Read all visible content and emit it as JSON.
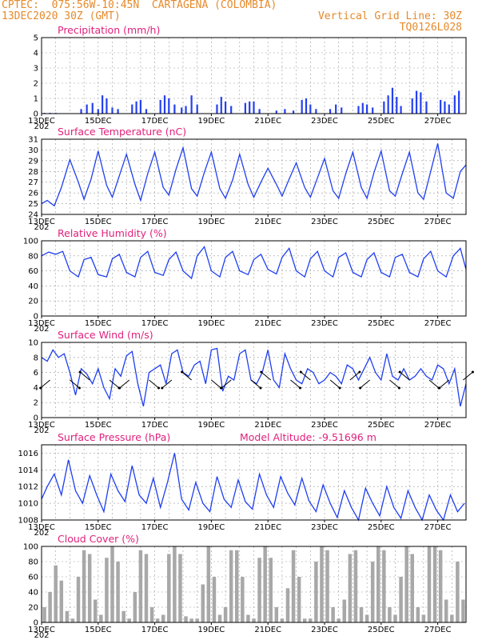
{
  "header": {
    "line1_left": "CPTEC:  075:56W-10:45N  CARTAGENA (COLOMBIA)",
    "line2_left": "13DEC2020 30Z (GMT)",
    "line2_right": "Vertical Grid Line: 30Z",
    "line3_right": "TQ0126L028"
  },
  "colors": {
    "header": "#e58a2c",
    "title": "#e0217c",
    "line": "#1f3ff0",
    "bar": "#2440f0",
    "cloud": "#a8a8a8",
    "grid": "#9a9a9a"
  },
  "chart_data": [
    {
      "type": "bar",
      "title": "Precipitation (mm/h)",
      "x_ticks": [
        "13DEC",
        "15DEC",
        "17DEC",
        "19DEC",
        "21DEC",
        "23DEC",
        "25DEC",
        "27DEC"
      ],
      "x_extra_label": "202",
      "ylim": [
        0,
        5
      ],
      "y_ticks": [
        "0",
        "1",
        "2",
        "3",
        "4",
        "5"
      ],
      "grid": "dashed",
      "x_days": [
        0.1,
        0.3,
        0.5,
        1.4,
        1.6,
        1.8,
        2.0,
        2.15,
        2.3,
        2.5,
        2.7,
        3.2,
        3.35,
        3.5,
        3.7,
        4.2,
        4.35,
        4.5,
        4.7,
        4.95,
        5.1,
        5.3,
        5.5,
        6.2,
        6.35,
        6.5,
        6.7,
        7.2,
        7.35,
        7.5,
        7.7,
        8.3,
        8.6,
        8.9,
        9.2,
        9.35,
        9.5,
        9.7,
        10.2,
        10.4,
        10.6,
        11.2,
        11.35,
        11.5,
        11.7,
        12.1,
        12.25,
        12.4,
        12.55,
        12.7,
        13.1,
        13.25,
        13.4,
        13.6,
        14.1,
        14.25,
        14.4,
        14.6,
        14.75
      ],
      "values": [
        0.05,
        0.05,
        0.05,
        0.3,
        0.6,
        0.7,
        0.3,
        1.2,
        1.0,
        0.4,
        0.3,
        0.6,
        0.8,
        0.9,
        0.3,
        0.9,
        1.2,
        1.0,
        0.6,
        0.4,
        0.5,
        1.2,
        0.6,
        0.6,
        1.1,
        0.8,
        0.5,
        0.7,
        0.8,
        0.8,
        0.3,
        0.2,
        0.3,
        0.2,
        0.9,
        1.0,
        0.6,
        0.3,
        0.3,
        0.6,
        0.4,
        0.5,
        0.7,
        0.6,
        0.4,
        0.8,
        1.2,
        1.7,
        1.1,
        0.5,
        1.0,
        1.5,
        1.4,
        0.8,
        0.9,
        0.8,
        0.6,
        1.2,
        1.5
      ]
    },
    {
      "type": "line",
      "title": "Surface Temperature (nC)",
      "x_ticks": [
        "13DEC",
        "15DEC",
        "17DEC",
        "19DEC",
        "21DEC",
        "23DEC",
        "25DEC",
        "27DEC"
      ],
      "x_extra_label": "202",
      "ylim": [
        24,
        31
      ],
      "y_ticks": [
        "24",
        "25",
        "26",
        "27",
        "28",
        "29",
        "30",
        "31"
      ],
      "grid": "dashed",
      "x_days": [
        0,
        0.2,
        0.45,
        0.7,
        1.0,
        1.3,
        1.5,
        1.75,
        2.0,
        2.3,
        2.5,
        2.75,
        3.0,
        3.3,
        3.5,
        3.75,
        4.0,
        4.3,
        4.5,
        4.75,
        5.0,
        5.3,
        5.5,
        5.75,
        6.0,
        6.3,
        6.5,
        6.75,
        7.0,
        7.3,
        7.5,
        7.75,
        8.0,
        8.3,
        8.5,
        8.75,
        9.0,
        9.3,
        9.5,
        9.75,
        10.0,
        10.3,
        10.5,
        10.75,
        11.0,
        11.3,
        11.5,
        11.75,
        12.0,
        12.3,
        12.5,
        12.75,
        13.0,
        13.3,
        13.5,
        13.75,
        14.0,
        14.3,
        14.55,
        14.8,
        15.0
      ],
      "values": [
        25.0,
        25.3,
        24.8,
        26.5,
        29.1,
        27.0,
        25.4,
        27.3,
        29.9,
        26.7,
        25.6,
        27.6,
        29.6,
        26.8,
        25.3,
        27.8,
        29.8,
        26.5,
        25.8,
        28.2,
        30.2,
        26.4,
        25.7,
        27.9,
        29.8,
        26.4,
        25.5,
        27.2,
        29.6,
        26.8,
        25.6,
        27.0,
        28.3,
        26.8,
        25.7,
        27.3,
        28.8,
        26.5,
        25.6,
        27.4,
        29.2,
        26.2,
        25.5,
        27.8,
        29.8,
        26.5,
        25.5,
        27.9,
        29.9,
        26.2,
        25.7,
        27.8,
        29.8,
        26.0,
        25.4,
        28.0,
        30.6,
        26.0,
        25.5,
        28.0,
        28.6
      ]
    },
    {
      "type": "line",
      "title": "Relative Humidity (%)",
      "x_ticks": [
        "13DEC",
        "15DEC",
        "17DEC",
        "19DEC",
        "21DEC",
        "23DEC",
        "25DEC",
        "27DEC"
      ],
      "x_extra_label": "202",
      "ylim": [
        0,
        100
      ],
      "y_ticks": [
        "0",
        "20",
        "40",
        "60",
        "80",
        "100"
      ],
      "grid": "dashed",
      "x_days": [
        0,
        0.25,
        0.5,
        0.75,
        1.0,
        1.3,
        1.5,
        1.75,
        2.0,
        2.3,
        2.5,
        2.75,
        3.0,
        3.3,
        3.5,
        3.75,
        4.0,
        4.3,
        4.5,
        4.75,
        5.0,
        5.3,
        5.5,
        5.75,
        6.0,
        6.3,
        6.5,
        6.75,
        7.0,
        7.3,
        7.5,
        7.75,
        8.0,
        8.3,
        8.5,
        8.75,
        9.0,
        9.3,
        9.5,
        9.75,
        10.0,
        10.3,
        10.5,
        10.75,
        11.0,
        11.3,
        11.5,
        11.75,
        12.0,
        12.3,
        12.5,
        12.75,
        13.0,
        13.3,
        13.5,
        13.75,
        14.0,
        14.3,
        14.55,
        14.8,
        15.0
      ],
      "values": [
        80,
        85,
        82,
        86,
        60,
        52,
        75,
        78,
        55,
        52,
        76,
        82,
        58,
        52,
        78,
        86,
        58,
        54,
        75,
        85,
        60,
        50,
        80,
        92,
        60,
        52,
        78,
        86,
        60,
        55,
        75,
        82,
        62,
        56,
        78,
        90,
        60,
        52,
        76,
        86,
        60,
        52,
        78,
        84,
        58,
        52,
        75,
        84,
        58,
        52,
        78,
        82,
        58,
        52,
        76,
        86,
        60,
        52,
        80,
        90,
        62
      ]
    },
    {
      "type": "line",
      "title": "Surface Wind (m/s)",
      "x_ticks": [
        "13DEC",
        "15DEC",
        "17DEC",
        "19DEC",
        "21DEC",
        "23DEC",
        "25DEC",
        "27DEC"
      ],
      "x_extra_label": "202",
      "ylim": [
        0,
        10
      ],
      "y_ticks": [
        "0",
        "2",
        "4",
        "6",
        "8",
        "10"
      ],
      "grid": "dashed",
      "x_days": [
        0,
        0.2,
        0.4,
        0.6,
        0.8,
        1.0,
        1.2,
        1.4,
        1.6,
        1.8,
        2.0,
        2.2,
        2.4,
        2.6,
        2.8,
        3.0,
        3.2,
        3.4,
        3.6,
        3.8,
        4.0,
        4.2,
        4.4,
        4.6,
        4.8,
        5.0,
        5.2,
        5.4,
        5.6,
        5.8,
        6.0,
        6.2,
        6.4,
        6.6,
        6.8,
        7.0,
        7.2,
        7.4,
        7.6,
        7.8,
        8.0,
        8.2,
        8.4,
        8.6,
        8.8,
        9.0,
        9.2,
        9.4,
        9.6,
        9.8,
        10.0,
        10.2,
        10.4,
        10.6,
        10.8,
        11.0,
        11.2,
        11.4,
        11.6,
        11.8,
        12.0,
        12.2,
        12.4,
        12.6,
        12.8,
        13.0,
        13.2,
        13.4,
        13.6,
        13.8,
        14.0,
        14.2,
        14.4,
        14.6,
        14.8,
        15.0
      ],
      "values": [
        8.0,
        7.5,
        9.0,
        8.0,
        8.5,
        6.0,
        3.0,
        6.5,
        5.8,
        4.5,
        6.5,
        4.0,
        2.5,
        6.5,
        5.5,
        8.2,
        8.8,
        4.5,
        1.5,
        6.0,
        6.5,
        7.0,
        4.5,
        8.5,
        9.0,
        6.0,
        5.5,
        7.0,
        7.5,
        4.5,
        9.0,
        9.2,
        3.5,
        5.5,
        5.0,
        8.5,
        9.0,
        5.0,
        4.5,
        6.0,
        9.0,
        5.0,
        4.0,
        8.5,
        6.5,
        5.0,
        4.5,
        6.5,
        6.0,
        4.5,
        5.0,
        6.0,
        5.5,
        4.5,
        7.0,
        6.5,
        5.0,
        6.5,
        8.0,
        6.0,
        5.0,
        8.5,
        5.5,
        5.0,
        6.5,
        5.0,
        5.5,
        6.5,
        5.5,
        5.0,
        7.0,
        6.5,
        4.5,
        6.5,
        1.5,
        4.5
      ],
      "barbs_x_days": [
        0.3,
        1.0,
        1.7,
        2.4,
        3.1,
        3.8,
        4.6,
        5.3,
        6.0,
        6.7,
        7.4,
        8.1,
        8.8,
        9.5,
        10.2,
        10.9,
        11.6,
        12.3,
        13.0,
        13.7,
        14.4,
        14.9
      ],
      "barbs_u": [
        -1,
        1,
        -1,
        1,
        -1,
        1,
        -1,
        -1,
        1,
        -1,
        1,
        -1,
        1,
        -1,
        1,
        1,
        -1,
        1,
        -1,
        1,
        -1,
        1
      ],
      "barbs_v": [
        -1,
        -1,
        1,
        -1,
        -1,
        -1,
        -1,
        1,
        -1,
        -1,
        -1,
        1,
        -1,
        1,
        -1,
        1,
        -1,
        -1,
        1,
        -1,
        -1,
        1
      ]
    },
    {
      "type": "line",
      "title": "Surface Pressure (hPa)",
      "annotation": "Model Altitude: -9.51696 m",
      "x_ticks": [
        "13DEC",
        "15DEC",
        "17DEC",
        "19DEC",
        "21DEC",
        "23DEC",
        "25DEC",
        "27DEC"
      ],
      "x_extra_label": "202",
      "ylim": [
        1008,
        1017
      ],
      "y_ticks": [
        "1008",
        "1010",
        "1012",
        "1014",
        "1016"
      ],
      "grid": "dashed",
      "x_days": [
        0,
        0.2,
        0.45,
        0.7,
        0.95,
        1.2,
        1.45,
        1.7,
        1.95,
        2.2,
        2.45,
        2.7,
        2.95,
        3.2,
        3.45,
        3.7,
        3.95,
        4.2,
        4.45,
        4.7,
        4.95,
        5.2,
        5.45,
        5.7,
        5.95,
        6.2,
        6.45,
        6.7,
        6.95,
        7.2,
        7.45,
        7.7,
        7.95,
        8.2,
        8.45,
        8.7,
        8.95,
        9.2,
        9.45,
        9.7,
        9.95,
        10.2,
        10.45,
        10.7,
        10.95,
        11.2,
        11.45,
        11.7,
        11.95,
        12.2,
        12.45,
        12.7,
        12.95,
        13.2,
        13.45,
        13.7,
        13.95,
        14.2,
        14.45,
        14.7,
        14.95
      ],
      "values": [
        1010.5,
        1012.0,
        1013.5,
        1011.0,
        1015.2,
        1011.5,
        1010.0,
        1013.3,
        1011.0,
        1009.0,
        1013.5,
        1011.5,
        1010.2,
        1014.5,
        1011.0,
        1010.0,
        1013.0,
        1009.5,
        1012.5,
        1016.0,
        1010.5,
        1009.2,
        1012.5,
        1010.0,
        1009.0,
        1013.2,
        1010.5,
        1009.5,
        1012.8,
        1010.2,
        1009.3,
        1013.5,
        1011.0,
        1009.5,
        1013.2,
        1011.2,
        1009.8,
        1013.0,
        1010.3,
        1009.0,
        1012.2,
        1010.0,
        1008.3,
        1011.5,
        1009.5,
        1008.0,
        1011.8,
        1010.0,
        1008.5,
        1012.0,
        1009.5,
        1008.2,
        1011.5,
        1009.5,
        1008.0,
        1011.0,
        1009.2,
        1008.0,
        1011.0,
        1009.0,
        1010.0
      ]
    },
    {
      "type": "bar",
      "title": "Cloud Cover (%)",
      "x_ticks": [
        "13DEC",
        "15DEC",
        "17DEC",
        "19DEC",
        "21DEC",
        "23DEC",
        "25DEC",
        "27DEC"
      ],
      "x_extra_label": "202",
      "ylim": [
        0,
        100
      ],
      "y_ticks": [
        "0",
        "20",
        "40",
        "60",
        "80",
        "100"
      ],
      "grid": "dashed",
      "x_days": [
        0.1,
        0.3,
        0.5,
        0.7,
        0.9,
        1.1,
        1.3,
        1.5,
        1.7,
        1.9,
        2.1,
        2.3,
        2.5,
        2.7,
        2.9,
        3.1,
        3.3,
        3.5,
        3.7,
        3.9,
        4.1,
        4.3,
        4.5,
        4.7,
        4.9,
        5.1,
        5.3,
        5.5,
        5.7,
        5.9,
        6.1,
        6.3,
        6.5,
        6.7,
        6.9,
        7.1,
        7.3,
        7.5,
        7.7,
        7.9,
        8.1,
        8.3,
        8.5,
        8.7,
        8.9,
        9.1,
        9.3,
        9.5,
        9.7,
        9.9,
        10.1,
        10.3,
        10.5,
        10.7,
        10.9,
        11.1,
        11.3,
        11.5,
        11.7,
        11.9,
        12.1,
        12.3,
        12.5,
        12.7,
        12.9,
        13.1,
        13.3,
        13.5,
        13.7,
        13.9,
        14.1,
        14.3,
        14.5,
        14.7,
        14.9
      ],
      "values": [
        20,
        40,
        75,
        55,
        15,
        5,
        60,
        95,
        90,
        30,
        10,
        85,
        100,
        80,
        15,
        5,
        40,
        95,
        90,
        20,
        5,
        10,
        90,
        100,
        90,
        8,
        5,
        5,
        50,
        100,
        60,
        10,
        20,
        95,
        95,
        60,
        10,
        5,
        85,
        100,
        85,
        20,
        5,
        45,
        95,
        60,
        5,
        5,
        80,
        100,
        95,
        20,
        5,
        30,
        90,
        95,
        20,
        10,
        80,
        100,
        95,
        20,
        10,
        60,
        100,
        90,
        20,
        10,
        100,
        100,
        95,
        30,
        10,
        80,
        30
      ]
    }
  ]
}
